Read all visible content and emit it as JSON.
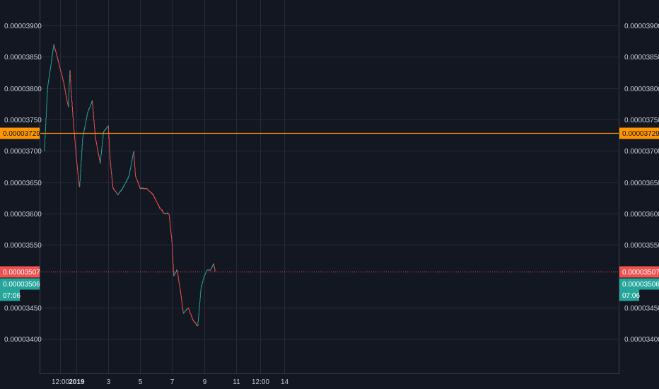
{
  "chart_data": {
    "type": "candlestick",
    "y_ticks": [
      "0.00003900",
      "0.00003850",
      "0.00003800",
      "0.00003750",
      "0.00003700",
      "0.00003650",
      "0.00003600",
      "0.00003550",
      "0.00003450",
      "0.00003400"
    ],
    "y_tick_values": [
      3.9e-05,
      3.85e-05,
      3.8e-05,
      3.75e-05,
      3.7e-05,
      3.65e-05,
      3.6e-05,
      3.55e-05,
      3.45e-05,
      3.4e-05
    ],
    "ylim": [
      3.354e-05,
      3.922e-05
    ],
    "x_ticks": [
      {
        "label": "12:00",
        "bold": false,
        "day": 0.5
      },
      {
        "label": "2019",
        "bold": true,
        "day": 1.0
      },
      {
        "label": "3",
        "bold": false,
        "day": 2.0
      },
      {
        "label": "5",
        "bold": false,
        "day": 3.0
      },
      {
        "label": "7",
        "bold": false,
        "day": 4.0
      },
      {
        "label": "9",
        "bold": false,
        "day": 5.0
      },
      {
        "label": "11",
        "bold": false,
        "day": 6.0
      },
      {
        "label": "12:00",
        "bold": false,
        "day": 6.75
      },
      {
        "label": "14",
        "bold": false,
        "day": 7.5
      }
    ],
    "grid": true,
    "price_lines": [
      {
        "label": "0.00003729",
        "value": 3.729e-05,
        "color": "#ff9800",
        "style": "solid"
      },
      {
        "label": "0.00003507",
        "value": 3.507e-05,
        "color": "#ef5350",
        "style": "dotted"
      }
    ],
    "current_price": {
      "label": "0.00003506",
      "value": 3.506e-05,
      "countdown": "07:06",
      "color": "#26a69a"
    },
    "up_color": "#26a69a",
    "down_color": "#ef5350",
    "path": [
      [
        0.0,
        3.7e-05
      ],
      [
        0.1,
        3.8e-05
      ],
      [
        0.3,
        3.87e-05
      ],
      [
        0.45,
        3.84e-05
      ],
      [
        0.6,
        3.81e-05
      ],
      [
        0.75,
        3.77e-05
      ],
      [
        0.8,
        3.83e-05
      ],
      [
        0.9,
        3.75e-05
      ],
      [
        1.0,
        3.69e-05
      ],
      [
        1.1,
        3.64e-05
      ],
      [
        1.2,
        3.72e-05
      ],
      [
        1.35,
        3.76e-05
      ],
      [
        1.5,
        3.78e-05
      ],
      [
        1.6,
        3.72e-05
      ],
      [
        1.75,
        3.68e-05
      ],
      [
        1.85,
        3.73e-05
      ],
      [
        2.0,
        3.74e-05
      ],
      [
        2.05,
        3.69e-05
      ],
      [
        2.15,
        3.64e-05
      ],
      [
        2.3,
        3.63e-05
      ],
      [
        2.45,
        3.64e-05
      ],
      [
        2.65,
        3.66e-05
      ],
      [
        2.8,
        3.7e-05
      ],
      [
        2.85,
        3.66e-05
      ],
      [
        3.0,
        3.64e-05
      ],
      [
        3.2,
        3.64e-05
      ],
      [
        3.4,
        3.63e-05
      ],
      [
        3.6,
        3.61e-05
      ],
      [
        3.75,
        3.6e-05
      ],
      [
        3.9,
        3.6e-05
      ],
      [
        4.0,
        3.55e-05
      ],
      [
        4.05,
        3.5e-05
      ],
      [
        4.15,
        3.51e-05
      ],
      [
        4.25,
        3.48e-05
      ],
      [
        4.35,
        3.44e-05
      ],
      [
        4.5,
        3.45e-05
      ],
      [
        4.65,
        3.43e-05
      ],
      [
        4.8,
        3.42e-05
      ],
      [
        4.9,
        3.48e-05
      ],
      [
        5.0,
        3.5e-05
      ],
      [
        5.1,
        3.51e-05
      ],
      [
        5.2,
        3.51e-05
      ],
      [
        5.3,
        3.52e-05
      ],
      [
        5.35,
        3.507e-05
      ]
    ]
  }
}
